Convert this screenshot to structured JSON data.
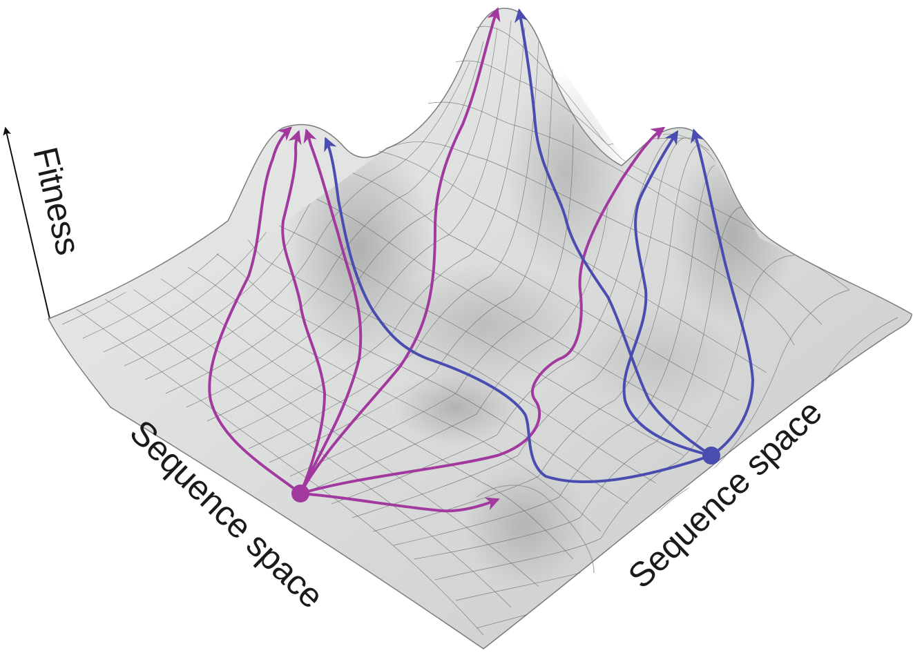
{
  "axes": {
    "vertical_label": "Fitness",
    "left_floor_label": "Sequence space",
    "right_floor_label": "Sequence space"
  },
  "colors": {
    "surface_fill": "#dcdedd",
    "surface_shadow": "#9a9c9b",
    "grid_line": "#5e6261",
    "magenta_path": "#a2399e",
    "blue_path": "#4a4db0",
    "axis_arrow": "#111111"
  },
  "landscape": {
    "peaks": [
      "left-peak",
      "center-peak",
      "right-peak"
    ],
    "valley_bump": "front-minor-bump"
  },
  "populations": [
    {
      "name": "magenta-start",
      "color": "magenta",
      "paths": 6
    },
    {
      "name": "blue-start",
      "color": "blue",
      "paths": 4
    }
  ]
}
